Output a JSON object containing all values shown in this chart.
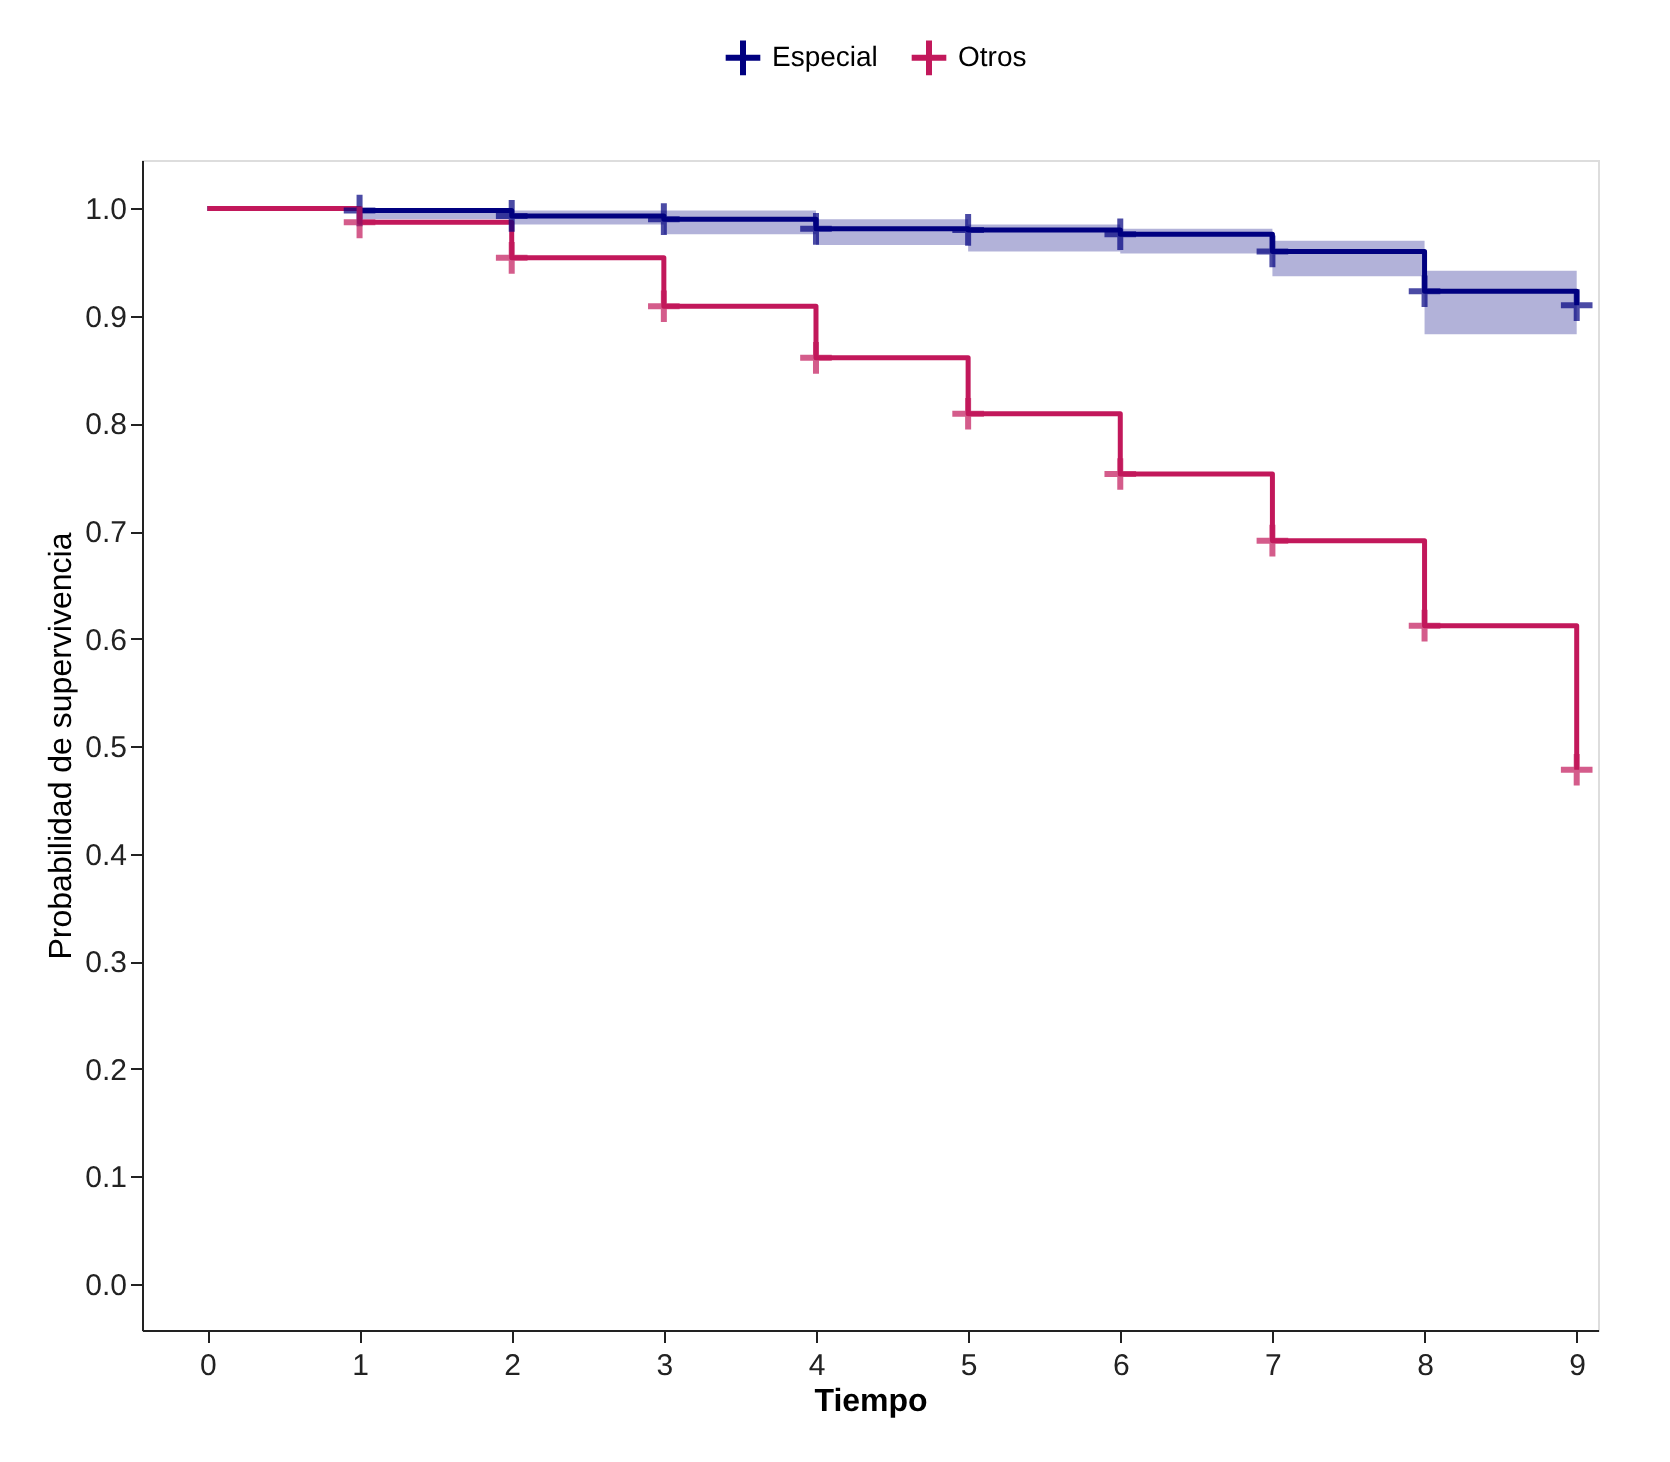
{
  "chart_data": {
    "type": "step",
    "xlabel": "Tiempo",
    "ylabel": "Probabilidad de supervivencia",
    "xlim": [
      -0.43,
      9.14
    ],
    "ylim": [
      -0.043,
      1.045
    ],
    "xticks": [
      0,
      1,
      2,
      3,
      4,
      5,
      6,
      7,
      8,
      9
    ],
    "yticks": [
      {
        "value": 0,
        "label": "0.0"
      },
      {
        "value": 0.1,
        "label": "0.1"
      },
      {
        "value": 0.2,
        "label": "0.2"
      },
      {
        "value": 0.3,
        "label": "0.3"
      },
      {
        "value": 0.4,
        "label": "0.4"
      },
      {
        "value": 0.5,
        "label": "0.5"
      },
      {
        "value": 0.6,
        "label": "0.6"
      },
      {
        "value": 0.7,
        "label": "0.7"
      },
      {
        "value": 0.8,
        "label": "0.8"
      },
      {
        "value": 0.9,
        "label": "0.9"
      },
      {
        "value": 1,
        "label": "1.0"
      }
    ],
    "grid": false,
    "legend": "top",
    "line_style": "solid",
    "marker": "none",
    "series": [
      {
        "name": "Especial",
        "color": "#000080",
        "x": [
          0,
          1,
          2,
          3,
          4,
          5,
          6,
          7,
          8,
          9
        ],
        "values": [
          1.0,
          0.998,
          0.993,
          0.99,
          0.981,
          0.98,
          0.976,
          0.96,
          0.923,
          0.91
        ],
        "lower": [
          1.0,
          0.99,
          0.985,
          0.976,
          0.966,
          0.96,
          0.958,
          0.937,
          0.883,
          0.883
        ],
        "upper": [
          1.0,
          1.0,
          0.998,
          0.998,
          0.99,
          0.985,
          0.981,
          0.97,
          0.942,
          0.942
        ]
      },
      {
        "name": "Otros",
        "color": "#c2185b",
        "x": [
          0,
          1,
          2,
          3,
          4,
          5,
          6,
          7,
          8,
          9
        ],
        "values": [
          1.0,
          0.987,
          0.954,
          0.909,
          0.861,
          0.809,
          0.753,
          0.691,
          0.612,
          0.478
        ]
      },
      {
        "type": "scatter",
        "marker": "cross",
        "color": "#000080",
        "x": [
          1,
          2,
          3,
          4,
          5,
          6,
          7,
          8,
          9
        ],
        "values": [
          0.998,
          0.993,
          0.99,
          0.981,
          0.98,
          0.976,
          0.96,
          0.923,
          0.91
        ]
      },
      {
        "type": "scatter",
        "marker": "cross",
        "color": "#c2185b",
        "x": [
          1,
          2,
          3,
          4,
          5,
          6,
          7,
          8,
          9
        ],
        "values": [
          0.987,
          0.954,
          0.909,
          0.861,
          0.809,
          0.753,
          0.691,
          0.612,
          0.478
        ]
      }
    ]
  }
}
